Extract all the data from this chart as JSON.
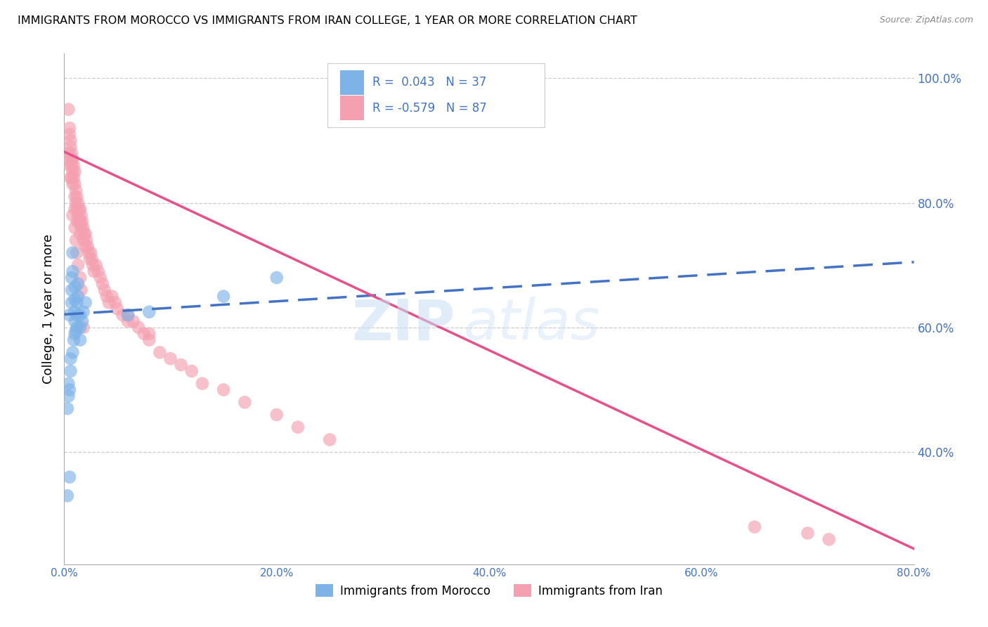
{
  "title": "IMMIGRANTS FROM MOROCCO VS IMMIGRANTS FROM IRAN COLLEGE, 1 YEAR OR MORE CORRELATION CHART",
  "source": "Source: ZipAtlas.com",
  "ylabel_left": "College, 1 year or more",
  "legend_r1": "R =  0.043",
  "legend_n1": "N = 37",
  "legend_r2": "R = -0.579",
  "legend_n2": "N = 87",
  "legend_label1": "Immigrants from Morocco",
  "legend_label2": "Immigrants from Iran",
  "color_morocco": "#7EB3E8",
  "color_iran": "#F4A0B0",
  "color_trendline_morocco": "#4472C4",
  "color_trendline_iran": "#E8508A",
  "watermark_zip": "ZIP",
  "watermark_atlas": "atlas",
  "xmin": 0.0,
  "xmax": 0.8,
  "ymin": 0.22,
  "ymax": 1.04,
  "y_ticks_right": [
    0.4,
    0.6,
    0.8,
    1.0
  ],
  "x_ticks": [
    0.0,
    0.2,
    0.4,
    0.6,
    0.8
  ],
  "trend_morocco_x0": 0.0,
  "trend_morocco_y0": 0.621,
  "trend_morocco_x1": 0.8,
  "trend_morocco_y1": 0.705,
  "trend_iran_x0": 0.0,
  "trend_iran_y0": 0.882,
  "trend_iran_x1": 0.8,
  "trend_iran_y1": 0.245,
  "morocco_x": [
    0.003,
    0.005,
    0.005,
    0.005,
    0.007,
    0.007,
    0.007,
    0.008,
    0.008,
    0.01,
    0.01,
    0.01,
    0.01,
    0.01,
    0.012,
    0.012,
    0.012,
    0.013,
    0.013,
    0.015,
    0.015,
    0.015,
    0.017,
    0.018,
    0.02,
    0.003,
    0.004,
    0.004,
    0.006,
    0.006,
    0.008,
    0.009,
    0.011,
    0.06,
    0.08,
    0.15,
    0.2
  ],
  "morocco_y": [
    0.33,
    0.36,
    0.5,
    0.62,
    0.64,
    0.66,
    0.68,
    0.69,
    0.72,
    0.59,
    0.61,
    0.625,
    0.645,
    0.665,
    0.6,
    0.62,
    0.64,
    0.65,
    0.67,
    0.58,
    0.6,
    0.62,
    0.61,
    0.625,
    0.64,
    0.47,
    0.49,
    0.51,
    0.53,
    0.55,
    0.56,
    0.58,
    0.595,
    0.62,
    0.625,
    0.65,
    0.68
  ],
  "iran_x": [
    0.003,
    0.004,
    0.005,
    0.005,
    0.006,
    0.006,
    0.007,
    0.007,
    0.007,
    0.008,
    0.008,
    0.008,
    0.009,
    0.009,
    0.01,
    0.01,
    0.01,
    0.01,
    0.011,
    0.011,
    0.012,
    0.012,
    0.012,
    0.013,
    0.013,
    0.014,
    0.014,
    0.015,
    0.015,
    0.015,
    0.016,
    0.016,
    0.017,
    0.018,
    0.018,
    0.019,
    0.02,
    0.02,
    0.021,
    0.022,
    0.023,
    0.024,
    0.025,
    0.026,
    0.027,
    0.028,
    0.03,
    0.032,
    0.034,
    0.036,
    0.038,
    0.04,
    0.042,
    0.045,
    0.048,
    0.05,
    0.055,
    0.06,
    0.065,
    0.07,
    0.075,
    0.08,
    0.09,
    0.1,
    0.11,
    0.12,
    0.13,
    0.15,
    0.17,
    0.2,
    0.22,
    0.25,
    0.004,
    0.005,
    0.006,
    0.007,
    0.008,
    0.01,
    0.011,
    0.012,
    0.013,
    0.015,
    0.016,
    0.018,
    0.06,
    0.08,
    0.65,
    0.7,
    0.72
  ],
  "iran_y": [
    0.87,
    0.88,
    0.86,
    0.92,
    0.84,
    0.9,
    0.86,
    0.88,
    0.84,
    0.85,
    0.87,
    0.83,
    0.86,
    0.84,
    0.85,
    0.83,
    0.81,
    0.79,
    0.82,
    0.8,
    0.81,
    0.79,
    0.77,
    0.8,
    0.78,
    0.79,
    0.77,
    0.79,
    0.77,
    0.75,
    0.78,
    0.76,
    0.77,
    0.76,
    0.74,
    0.75,
    0.75,
    0.73,
    0.74,
    0.73,
    0.72,
    0.71,
    0.72,
    0.71,
    0.7,
    0.69,
    0.7,
    0.69,
    0.68,
    0.67,
    0.66,
    0.65,
    0.64,
    0.65,
    0.64,
    0.63,
    0.62,
    0.62,
    0.61,
    0.6,
    0.59,
    0.58,
    0.56,
    0.55,
    0.54,
    0.53,
    0.51,
    0.5,
    0.48,
    0.46,
    0.44,
    0.42,
    0.95,
    0.91,
    0.89,
    0.87,
    0.78,
    0.76,
    0.74,
    0.72,
    0.7,
    0.68,
    0.66,
    0.6,
    0.61,
    0.59,
    0.28,
    0.27,
    0.26
  ]
}
